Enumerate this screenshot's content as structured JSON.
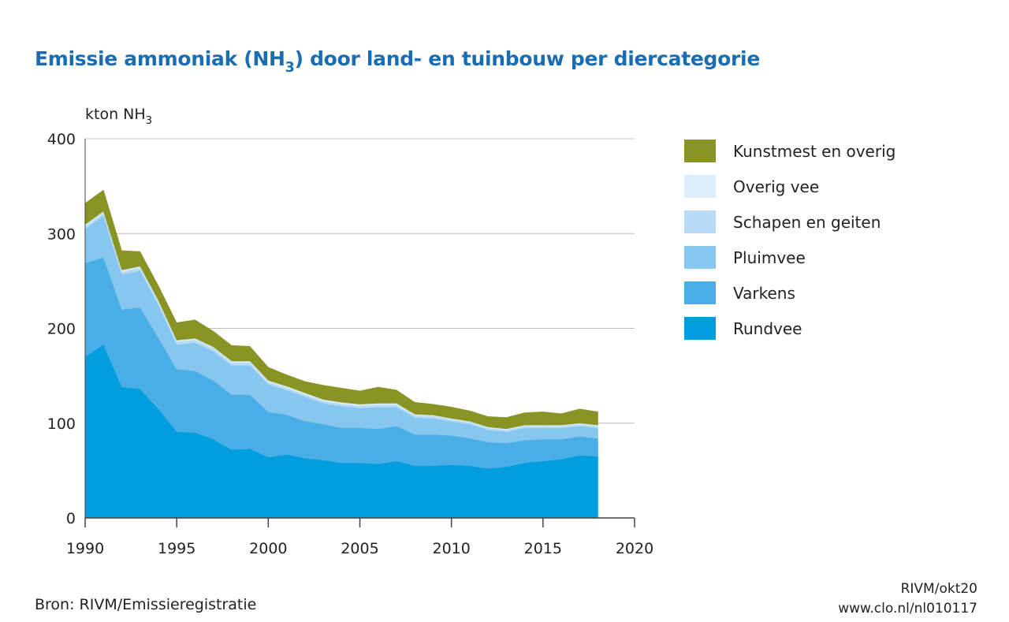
{
  "title": {
    "pre": "Emissie ammoniak (NH",
    "sub": "3",
    "post": ") door land- en tuinbouw per diercategorie"
  },
  "unit": {
    "pre": "kton NH",
    "sub": "3"
  },
  "source": "Bron: RIVM/Emissieregistratie",
  "credit": {
    "line1": "RIVM/okt20",
    "line2": "www.clo.nl/nl010117"
  },
  "chart_data": {
    "type": "area",
    "stacked": true,
    "title": "Emissie ammoniak (NH3) door land- en tuinbouw per diercategorie",
    "ylabel": "kton NH3",
    "xlabel": "",
    "xlim": [
      1990,
      2020
    ],
    "ylim": [
      0,
      400
    ],
    "xticks": [
      1990,
      1995,
      2000,
      2005,
      2010,
      2015,
      2020
    ],
    "yticks": [
      0,
      100,
      200,
      300,
      400
    ],
    "grid": true,
    "legend": "right",
    "x": [
      1990,
      1991,
      1992,
      1993,
      1994,
      1995,
      1996,
      1997,
      1998,
      1999,
      2000,
      2001,
      2002,
      2003,
      2004,
      2005,
      2006,
      2007,
      2008,
      2009,
      2010,
      2011,
      2012,
      2013,
      2014,
      2015,
      2016,
      2017,
      2018
    ],
    "series": [
      {
        "name": "Rundvee",
        "color": "#009ddf",
        "values": [
          170,
          183,
          138,
          136,
          115,
          91,
          90,
          83,
          72,
          73,
          64,
          67,
          63,
          61,
          58,
          58,
          57,
          60,
          55,
          55,
          56,
          55,
          52,
          54,
          58,
          60,
          62,
          66,
          65
        ]
      },
      {
        "name": "Varkens",
        "color": "#4aaee6",
        "values": [
          99,
          92,
          82,
          86,
          75,
          66,
          65,
          62,
          58,
          57,
          48,
          42,
          39,
          38,
          37,
          37,
          37,
          37,
          33,
          33,
          31,
          29,
          28,
          25,
          24,
          23,
          21,
          20,
          19
        ]
      },
      {
        "name": "Pluimvee",
        "color": "#86c6ef",
        "values": [
          36,
          44,
          37,
          39,
          35,
          26,
          30,
          31,
          31,
          31,
          29,
          26,
          26,
          22,
          23,
          21,
          23,
          20,
          18,
          17,
          15,
          15,
          13,
          12,
          13,
          12,
          12,
          11,
          11
        ]
      },
      {
        "name": "Schapen en geiten",
        "color": "#b8dcf5",
        "values": [
          3,
          3,
          3,
          3,
          3,
          3,
          3,
          3,
          3,
          3,
          2.5,
          2.5,
          2.5,
          2.5,
          2.5,
          2.5,
          2.5,
          2.5,
          2.5,
          2.5,
          2,
          2,
          2,
          2,
          2,
          2,
          2,
          2,
          2
        ]
      },
      {
        "name": "Overig vee",
        "color": "#dcedfb",
        "values": [
          1.5,
          1.5,
          1.5,
          1.5,
          1.5,
          1.5,
          1.5,
          1.5,
          1.5,
          1.5,
          1.5,
          1.5,
          1.5,
          1.5,
          1.5,
          1.5,
          1.5,
          1.5,
          1,
          1,
          1,
          1,
          1,
          1,
          1,
          1,
          1,
          1,
          1
        ]
      },
      {
        "name": "Kunstmest en overig",
        "color": "#8a9425",
        "values": [
          22.5,
          22.5,
          20.5,
          15.5,
          15.5,
          18.5,
          19.5,
          16.5,
          16.5,
          15.5,
          14,
          12,
          12,
          15,
          15,
          14,
          17,
          14,
          12.5,
          11.5,
          12,
          11,
          11,
          12,
          13,
          14,
          12,
          15,
          14
        ]
      }
    ]
  }
}
